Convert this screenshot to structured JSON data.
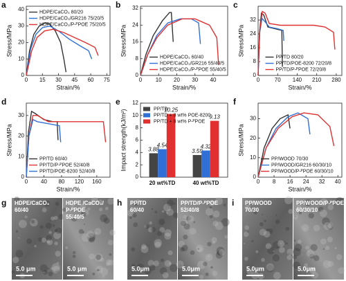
{
  "chart_data": [
    {
      "panel": "a",
      "type": "line",
      "x_label": "Strain/%",
      "y_label": "Stress/MPa",
      "xlim": [
        0,
        78
      ],
      "ylim": [
        0,
        42
      ],
      "xticks": [
        0,
        15,
        30,
        45,
        60,
        75
      ],
      "yticks": [
        0,
        10,
        20,
        30,
        40
      ],
      "legend": "upper left",
      "series": [
        {
          "name": "HDPE/CaCO₃ 80/20",
          "color": "#333333",
          "x": [
            0,
            3,
            7,
            12,
            18,
            22,
            27,
            32,
            35,
            37
          ],
          "values": [
            0,
            15,
            25,
            30,
            32,
            31,
            27,
            20,
            10,
            2
          ]
        },
        {
          "name": "HDPE/CaCO₃/GR216 75/20/5",
          "color": "#2f6fd6",
          "x": [
            0,
            4,
            9,
            15,
            22,
            30,
            40,
            50,
            58,
            61
          ],
          "values": [
            0,
            16,
            25,
            29,
            30,
            27,
            22,
            18,
            15,
            10
          ]
        },
        {
          "name": "HDPE/CaCO₃/P-ᴾPOE 75/20/5",
          "color": "#e03030",
          "x": [
            0,
            5,
            10,
            17,
            25,
            35,
            45,
            55,
            64,
            67
          ],
          "values": [
            0,
            15,
            23,
            27,
            28,
            26,
            23,
            20,
            17,
            12
          ]
        }
      ]
    },
    {
      "panel": "b",
      "type": "line",
      "x_label": "Strain/%",
      "y_label": "Stress/MPa",
      "xlim": [
        0,
        48
      ],
      "ylim": [
        0,
        33
      ],
      "xticks": [
        0,
        10,
        20,
        30,
        40
      ],
      "yticks": [
        0,
        8,
        16,
        24,
        32
      ],
      "legend": "lower center",
      "series": [
        {
          "name": "HDPE/CaCO₃ 60/40",
          "color": "#333333",
          "x": [
            0,
            3,
            7,
            12,
            16,
            17,
            18
          ],
          "values": [
            0,
            10,
            19,
            26,
            30,
            30,
            16
          ]
        },
        {
          "name": "HDPE/CaCO₃/GR216 55/40/5",
          "color": "#2f6fd6",
          "x": [
            0,
            4,
            9,
            15,
            22,
            28,
            32,
            33
          ],
          "values": [
            0,
            10,
            19,
            25,
            27,
            27,
            25,
            15
          ]
        },
        {
          "name": "HDPE/CaCO₃/P-ᴾPOE 55/40/5",
          "color": "#e03030",
          "x": [
            0,
            4,
            9,
            15,
            23,
            30,
            38,
            42,
            43
          ],
          "values": [
            0,
            10,
            18,
            24,
            27,
            27,
            24,
            18,
            5
          ]
        }
      ]
    },
    {
      "panel": "c",
      "type": "line",
      "x_label": "Strain/%",
      "y_label": "Stress/MPa",
      "xlim": [
        0,
        300
      ],
      "ylim": [
        0,
        40
      ],
      "xticks": [
        0,
        70,
        140,
        210,
        280
      ],
      "yticks": [
        0,
        8,
        16,
        24,
        32
      ],
      "legend": "lower center",
      "series": [
        {
          "name": "PP/TD 80/20",
          "color": "#333333",
          "x": [
            0,
            5,
            12,
            20,
            35,
            60,
            85,
            87
          ],
          "values": [
            0,
            25,
            36,
            35,
            28,
            27,
            26,
            5
          ]
        },
        {
          "name": "PP/TD/POE-8200 72/20/8",
          "color": "#2f6fd6",
          "x": [
            0,
            6,
            14,
            25,
            40,
            70,
            90,
            92
          ],
          "values": [
            0,
            25,
            33,
            31,
            28,
            27,
            26,
            20
          ]
        },
        {
          "name": "PP/TD/P-ᴾPOE 72/20/8",
          "color": "#e03030",
          "x": [
            0,
            6,
            15,
            25,
            40,
            80,
            140,
            200,
            240,
            270,
            275
          ],
          "values": [
            0,
            26,
            37,
            36,
            30,
            29,
            29,
            29,
            28,
            25,
            15
          ]
        }
      ]
    },
    {
      "panel": "d",
      "type": "line",
      "x_label": "Strain/%",
      "y_label": "Stress/MPa",
      "xlim": [
        0,
        190
      ],
      "ylim": [
        0,
        36
      ],
      "xticks": [
        0,
        40,
        80,
        120,
        160
      ],
      "yticks": [
        0,
        10,
        20,
        30
      ],
      "legend": "lower left",
      "series": [
        {
          "name": "PP/TD 60/40",
          "color": "#333333",
          "x": [
            0,
            5,
            12,
            20,
            40,
            60,
            70,
            72
          ],
          "values": [
            0,
            22,
            32,
            31,
            28,
            27,
            27,
            18
          ]
        },
        {
          "name": "PP/TD/P-ᴾPOE 52/40/8",
          "color": "#e03030",
          "x": [
            0,
            6,
            15,
            25,
            50,
            100,
            150,
            175,
            180
          ],
          "values": [
            0,
            20,
            30,
            30,
            27,
            27,
            27,
            27,
            17
          ]
        },
        {
          "name": "PP/TD/POE-8200 52/40/8",
          "color": "#2f6fd6",
          "x": [
            0,
            6,
            15,
            25,
            50,
            75,
            78
          ],
          "values": [
            0,
            20,
            28,
            27,
            26,
            25,
            17
          ]
        }
      ]
    },
    {
      "panel": "e",
      "type": "bar",
      "y_label": "Impact strength(kJ/m²)",
      "ylim": [
        0,
        12
      ],
      "yticks": [
        0,
        2,
        4,
        6,
        8,
        10,
        12
      ],
      "legend": "upper left",
      "categories": [
        "20 wt%TD",
        "40 wt%TD"
      ],
      "series": [
        {
          "name": "PP/TD",
          "color": "#444444",
          "values": [
            3.88,
            3.59
          ]
        },
        {
          "name": "PP/TD + 8 wt% POE-8200",
          "color": "#2f6fd6",
          "values": [
            4.54,
            4.32
          ]
        },
        {
          "name": "PP/TD + 8 wt% P-ᴾPOE",
          "color": "#e03030",
          "values": [
            10.25,
            9.13
          ]
        }
      ]
    },
    {
      "panel": "f",
      "type": "line",
      "x_label": "Strain/%",
      "y_label": "Stress/MPa",
      "xlim": [
        0,
        42
      ],
      "ylim": [
        0,
        38
      ],
      "xticks": [
        0,
        8,
        16,
        24,
        32,
        40
      ],
      "yticks": [
        0,
        10,
        20,
        30
      ],
      "legend": "lower left",
      "series": [
        {
          "name": "PP/WOOD 70/30",
          "color": "#333333",
          "x": [
            0,
            3,
            7,
            11,
            15,
            16
          ],
          "values": [
            0,
            15,
            25,
            30,
            32,
            25
          ]
        },
        {
          "name": "PP/WOOD/GR216 60/30/10",
          "color": "#2f6fd6",
          "x": [
            0,
            4,
            9,
            15,
            20,
            25,
            26
          ],
          "values": [
            0,
            15,
            25,
            31,
            33,
            30,
            22
          ]
        },
        {
          "name": "PP/WOOD/P-ᴾPOE 60/30/10",
          "color": "#e03030",
          "x": [
            0,
            4,
            10,
            17,
            23,
            30,
            36,
            38
          ],
          "values": [
            0,
            15,
            25,
            31,
            33,
            32,
            26,
            16
          ]
        }
      ]
    }
  ],
  "images": [
    {
      "panel": "g",
      "halves": [
        {
          "label_lines": [
            "HDPE/CaCO₃",
            "60/40"
          ],
          "scale_bar": "5.0 μm"
        },
        {
          "label_lines": [
            "HDPE /CaCO₃/",
            "P-ᴾPOE",
            "55/40/5"
          ],
          "scale_bar": "5.0 μm"
        }
      ]
    },
    {
      "panel": "h",
      "halves": [
        {
          "label_lines": [
            "PP/TD",
            "60/40"
          ],
          "scale_bar": "5.0μm"
        },
        {
          "label_lines": [
            "PP/TD/P-ᴾPOE",
            "52/40/8"
          ],
          "scale_bar": "5.0μm"
        }
      ]
    },
    {
      "panel": "i",
      "halves": [
        {
          "label_lines": [
            "PP/WOOD",
            "70/30"
          ],
          "scale_bar": "5.0μm"
        },
        {
          "label_lines": [
            "PP/WOOD/P-ᴾPOE",
            "60/30/10"
          ],
          "scale_bar": "5.0μm"
        }
      ]
    }
  ]
}
